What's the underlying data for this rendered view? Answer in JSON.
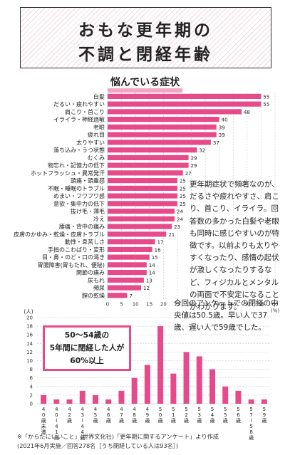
{
  "title": {
    "line1": "おもな更年期の",
    "line2": "不調と閉経年齢"
  },
  "chart1_title": "悩んでいる症状",
  "chart1_note": "更年期症状で頻著なのが、だるさや疲れやすさ、肩こり、首こり、イライラ。回答数の多かった白髪や老眼も同時に感じやすいのが特徴です。以前よりも太りやすくなったり、感情の起伏が激しくなったりするなど、フィジカルとメンタルの両面で不安定になることがわかります。",
  "chart2_note": "今回のアンケートでの閉経の中央値は50.5歳。早い人で37歳、遅い人で59歳でした。",
  "callout": {
    "line1": "50〜54歳の",
    "line2": "5年間に閉経した人が",
    "line3": "60%以上"
  },
  "footnote": {
    "line1": "※「からだにいいこと」(世界文化社)「更年期に関するアンケート」より作成",
    "line2": "(2021年6月実施／回答278名［うち閉経している人は93名］)"
  },
  "colors": {
    "bar": "#e64a8b",
    "grid": "#bbbbbb"
  },
  "chart_data": [
    {
      "type": "bar",
      "orientation": "horizontal",
      "title": "悩んでいる症状",
      "xlabel": "(%)",
      "xlim": [
        0,
        60
      ],
      "xticks": [
        0,
        5,
        10,
        15,
        20,
        25,
        30,
        35,
        40,
        45,
        50,
        55,
        60
      ],
      "categories": [
        "白髪",
        "だるい・疲れやすい",
        "肩こり・首こり",
        "イライラ・神経過敏",
        "老眼",
        "疲れ目",
        "太りやすい",
        "落ち込み・うつ状態",
        "むくみ",
        "物忘れ・記憶力の低下",
        "ホットフラッシュ・異常発汗",
        "頭痛・頭重感",
        "不眠・睡眠のトラブル",
        "めまい・フワフワ感",
        "意欲・集中力の低下",
        "抜け毛・薄毛",
        "冷え",
        "腰痛・背中の痛み",
        "皮膚のかゆみ・乾燥・皮膚トラブル",
        "動悸・息苦しさ",
        "手指のこわばり・変形",
        "目・鼻・のど・口の渇き",
        "胃腸障害(胃もたれ、便秘)",
        "関節の痛み",
        "尿もれ",
        "頻尿",
        "膣の乾燥"
      ],
      "values": [
        55,
        55,
        48,
        40,
        39,
        39,
        37,
        32,
        29,
        29,
        27,
        25,
        25,
        25,
        25,
        24,
        24,
        23,
        21,
        17,
        16,
        15,
        14,
        14,
        13,
        12,
        7
      ]
    },
    {
      "type": "bar",
      "orientation": "vertical",
      "ylabel": "(人)",
      "ylim": [
        0,
        20
      ],
      "yticks": [
        0,
        2,
        4,
        6,
        8,
        10,
        12,
        14,
        16,
        18,
        20
      ],
      "categories": [
        "40歳未満",
        "40〜41歳",
        "42歳",
        "43〜44歳",
        "45歳",
        "46歳",
        "47歳",
        "48歳",
        "49歳",
        "50歳",
        "51歳",
        "52歳",
        "53歳",
        "54歳",
        "55歳",
        "56歳",
        "57〜58歳",
        "59歳"
      ],
      "values": [
        2,
        1,
        1,
        3,
        2,
        1,
        3,
        6,
        9,
        18,
        7,
        12,
        11,
        8,
        4,
        3,
        1,
        1
      ]
    }
  ]
}
